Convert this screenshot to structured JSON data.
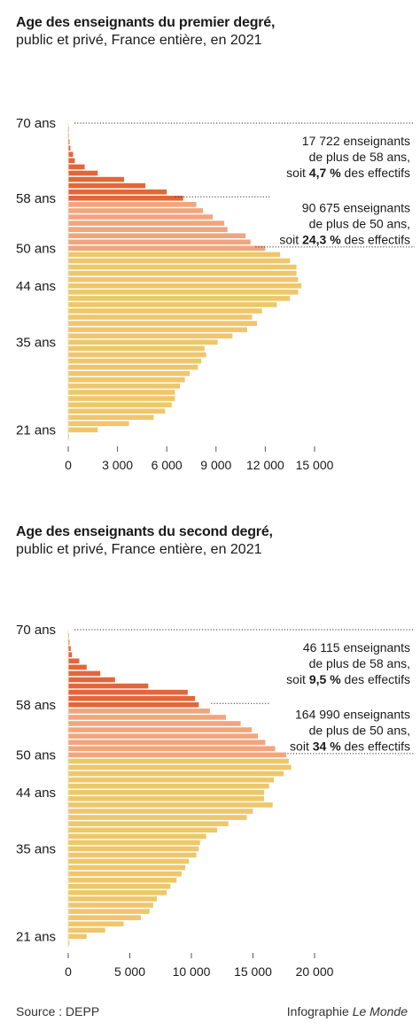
{
  "colors": {
    "over58": "#e2663a",
    "age50to58": "#f2a57d",
    "under50": "#eec76b",
    "text": "#1a1a1a",
    "axis": "#555555"
  },
  "chart_data": [
    {
      "type": "bar",
      "orientation": "horizontal",
      "title": "Age des enseignants du premier degré,",
      "subtitle": "public et privé, France entière, en 2021",
      "y_tick_labels": [
        {
          "age": 70,
          "label": "70 ans"
        },
        {
          "age": 58,
          "label": "58 ans"
        },
        {
          "age": 50,
          "label": "50 ans"
        },
        {
          "age": 44,
          "label": "44 ans"
        },
        {
          "age": 35,
          "label": "35 ans"
        },
        {
          "age": 21,
          "label": "21 ans"
        }
      ],
      "x_ticks": [
        0,
        3000,
        6000,
        9000,
        12000,
        15000
      ],
      "x_tick_labels": [
        "0",
        "3 000",
        "6 000",
        "9 000",
        "12 000",
        "15 000"
      ],
      "xlim": [
        0,
        15000
      ],
      "ages": [
        20,
        21,
        22,
        23,
        24,
        25,
        26,
        27,
        28,
        29,
        30,
        31,
        32,
        33,
        34,
        35,
        36,
        37,
        38,
        39,
        40,
        41,
        42,
        43,
        44,
        45,
        46,
        47,
        48,
        49,
        50,
        51,
        52,
        53,
        54,
        55,
        56,
        57,
        58,
        59,
        60,
        61,
        62,
        63,
        64,
        65,
        66,
        67,
        68,
        69
      ],
      "values": [
        60,
        1800,
        3700,
        5200,
        5900,
        6300,
        6500,
        6500,
        6800,
        7100,
        7400,
        7900,
        8100,
        8400,
        8300,
        9100,
        10000,
        10900,
        11500,
        11200,
        11800,
        12700,
        13500,
        14000,
        14200,
        14000,
        13900,
        13900,
        13500,
        12900,
        12000,
        11100,
        10800,
        9700,
        9500,
        8800,
        8200,
        7800,
        7000,
        6000,
        4700,
        3400,
        1800,
        1000,
        400,
        300,
        130,
        80,
        40,
        20
      ],
      "annotations": [
        {
          "lines": [
            "17 722 enseignants",
            "de plus de 58 ans,"
          ],
          "prefix": "soit ",
          "bold": "4,7 %",
          "suffix": " des effectifs"
        },
        {
          "lines": [
            "90 675 enseignants",
            "de plus de 50 ans,"
          ],
          "prefix": "soit ",
          "bold": "24,3 %",
          "suffix": " des effectifs"
        }
      ]
    },
    {
      "type": "bar",
      "orientation": "horizontal",
      "title": "Age des enseignants du second degré,",
      "subtitle": "public et privé, France entière, en 2021",
      "y_tick_labels": [
        {
          "age": 70,
          "label": "70 ans"
        },
        {
          "age": 58,
          "label": "58 ans"
        },
        {
          "age": 50,
          "label": "50 ans"
        },
        {
          "age": 44,
          "label": "44 ans"
        },
        {
          "age": 35,
          "label": "35 ans"
        },
        {
          "age": 21,
          "label": "21 ans"
        }
      ],
      "x_ticks": [
        0,
        5000,
        10000,
        15000,
        20000
      ],
      "x_tick_labels": [
        "0",
        "5 000",
        "10 000",
        "15 000",
        "20 000"
      ],
      "xlim": [
        0,
        20000
      ],
      "ages": [
        20,
        21,
        22,
        23,
        24,
        25,
        26,
        27,
        28,
        29,
        30,
        31,
        32,
        33,
        34,
        35,
        36,
        37,
        38,
        39,
        40,
        41,
        42,
        43,
        44,
        45,
        46,
        47,
        48,
        49,
        50,
        51,
        52,
        53,
        54,
        55,
        56,
        57,
        58,
        59,
        60,
        61,
        62,
        63,
        64,
        65,
        66,
        67,
        68,
        69
      ],
      "values": [
        100,
        1500,
        3000,
        4500,
        5900,
        6600,
        6900,
        7200,
        8000,
        8300,
        8800,
        9200,
        9500,
        9800,
        10400,
        10600,
        10700,
        11200,
        12100,
        13000,
        14500,
        15000,
        16600,
        15900,
        15900,
        16300,
        16700,
        17500,
        18100,
        17900,
        17700,
        16800,
        16000,
        15400,
        14900,
        14000,
        12800,
        11500,
        10600,
        10300,
        9700,
        6500,
        3800,
        2600,
        1500,
        900,
        300,
        200,
        100,
        50
      ],
      "annotations": [
        {
          "lines": [
            "46 115 enseignants",
            "de plus de 58 ans,"
          ],
          "prefix": "soit ",
          "bold": "9,5 %",
          "suffix": " des effectifs"
        },
        {
          "lines": [
            "164 990 enseignants",
            "de plus de 50 ans,"
          ],
          "prefix": "soit ",
          "bold": "34 %",
          "suffix": " des effectifs"
        }
      ]
    }
  ],
  "footer": {
    "source": "Source : DEPP",
    "credit_prefix": "Infographie ",
    "credit_italic": "Le Monde"
  }
}
